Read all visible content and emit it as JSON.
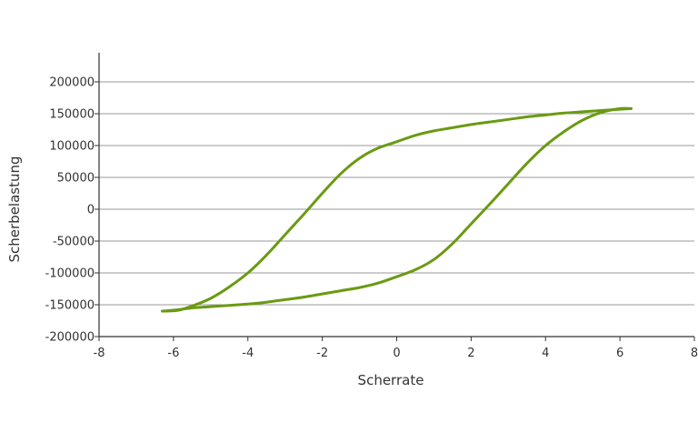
{
  "chart_data": {
    "type": "line",
    "xlabel": "Scherrate",
    "ylabel": "Scherbelastung",
    "xlim": [
      -8,
      8
    ],
    "ylim": [
      -200000,
      200000
    ],
    "xticks": [
      -8,
      -6,
      -4,
      -2,
      0,
      2,
      4,
      6,
      8
    ],
    "yticks": [
      -200000,
      -150000,
      -100000,
      -50000,
      0,
      50000,
      100000,
      150000,
      200000
    ],
    "grid": "horizontal",
    "legend": "none",
    "color": "#6a9a12",
    "series": [
      {
        "x": [
          -6.3,
          -5.9,
          -5.5,
          -5.0,
          -4.5,
          -4.0,
          -3.5,
          -3.0,
          -2.5,
          -2.0,
          -1.5,
          -1.0,
          -0.5,
          0.0,
          0.5,
          1.0,
          1.5,
          2.0,
          2.5,
          3.0,
          3.5,
          4.0,
          4.5,
          5.0,
          5.5,
          6.0,
          6.3
        ],
        "y": [
          -160000,
          -159000,
          -152000,
          -140000,
          -122000,
          -100000,
          -72000,
          -40000,
          -8000,
          25000,
          56000,
          80000,
          96000,
          106000,
          116000,
          123000,
          128000,
          133000,
          137000,
          141000,
          145000,
          148000,
          151000,
          153000,
          155000,
          157000,
          158000
        ]
      },
      {
        "x": [
          6.3,
          6.0,
          5.5,
          5.0,
          4.5,
          4.0,
          3.5,
          3.0,
          2.5,
          2.0,
          1.5,
          1.0,
          0.5,
          0.0,
          -0.5,
          -1.0,
          -1.5,
          -2.0,
          -2.5,
          -3.0,
          -3.5,
          -4.0,
          -4.5,
          -5.0,
          -5.5,
          -5.9,
          -6.3
        ],
        "y": [
          158000,
          158000,
          152000,
          140000,
          122000,
          100000,
          72000,
          40000,
          8000,
          -23000,
          -54000,
          -79000,
          -95000,
          -106000,
          -116000,
          -123000,
          -128000,
          -133000,
          -138000,
          -142000,
          -146000,
          -149000,
          -151000,
          -153000,
          -155000,
          -158000,
          -160000
        ]
      }
    ]
  }
}
